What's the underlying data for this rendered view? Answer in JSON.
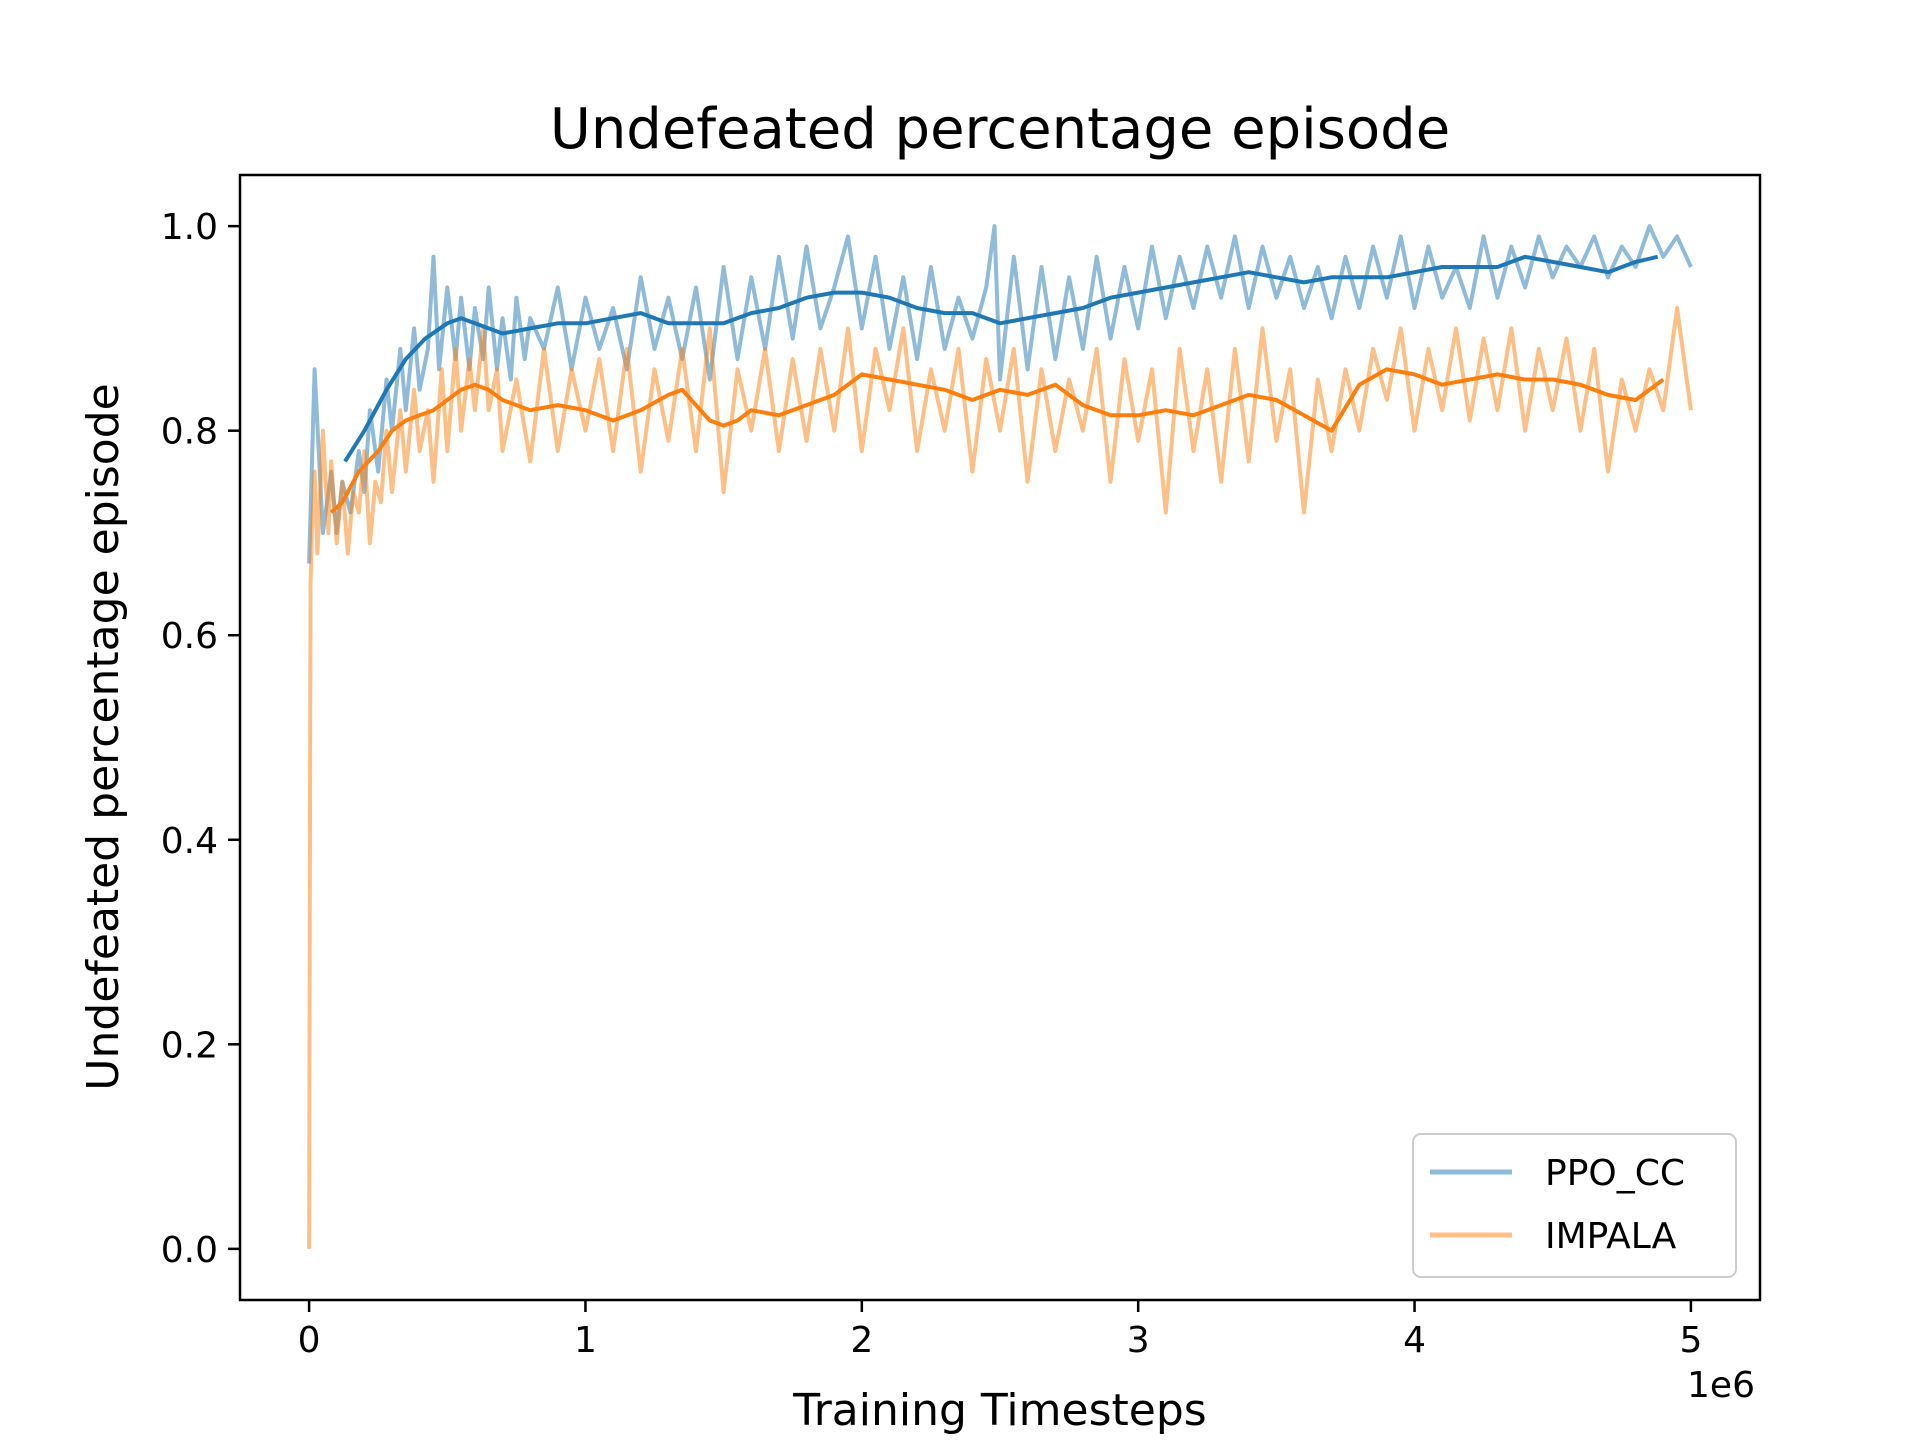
{
  "chart_data": {
    "type": "line",
    "title": "Undefeated percentage episode",
    "xlabel": "Training Timesteps",
    "ylabel": "Undefeated percentage episode",
    "x_offset_label": "1e6",
    "xlim": [
      -0.25,
      5.25
    ],
    "ylim": [
      -0.05,
      1.05
    ],
    "x_ticks": [
      0,
      1,
      2,
      3,
      4,
      5
    ],
    "x_tick_labels": [
      "0",
      "1",
      "2",
      "3",
      "4",
      "5"
    ],
    "y_ticks": [
      0.0,
      0.2,
      0.4,
      0.6,
      0.8,
      1.0
    ],
    "y_tick_labels": [
      "0.0",
      "0.2",
      "0.4",
      "0.6",
      "0.8",
      "1.0"
    ],
    "grid": false,
    "legend_position": "lower-right",
    "legend": [
      "PPO_CC",
      "IMPALA"
    ],
    "series": [
      {
        "name": "PPO_CC",
        "color": "#1f77b4",
        "raw_x": [
          0.0,
          0.02,
          0.05,
          0.08,
          0.1,
          0.12,
          0.15,
          0.18,
          0.2,
          0.22,
          0.25,
          0.28,
          0.3,
          0.33,
          0.35,
          0.38,
          0.4,
          0.43,
          0.45,
          0.47,
          0.5,
          0.53,
          0.55,
          0.58,
          0.6,
          0.63,
          0.65,
          0.68,
          0.7,
          0.73,
          0.75,
          0.78,
          0.8,
          0.85,
          0.9,
          0.95,
          1.0,
          1.05,
          1.1,
          1.15,
          1.2,
          1.25,
          1.3,
          1.35,
          1.4,
          1.45,
          1.5,
          1.55,
          1.6,
          1.65,
          1.7,
          1.75,
          1.8,
          1.85,
          1.9,
          1.95,
          2.0,
          2.05,
          2.1,
          2.15,
          2.2,
          2.25,
          2.3,
          2.35,
          2.4,
          2.45,
          2.48,
          2.5,
          2.55,
          2.6,
          2.65,
          2.7,
          2.75,
          2.8,
          2.85,
          2.9,
          2.95,
          3.0,
          3.05,
          3.1,
          3.15,
          3.2,
          3.25,
          3.3,
          3.35,
          3.4,
          3.45,
          3.5,
          3.55,
          3.6,
          3.65,
          3.7,
          3.75,
          3.8,
          3.85,
          3.9,
          3.95,
          4.0,
          4.05,
          4.1,
          4.15,
          4.2,
          4.25,
          4.3,
          4.35,
          4.4,
          4.45,
          4.5,
          4.55,
          4.6,
          4.65,
          4.7,
          4.75,
          4.8,
          4.85,
          4.9,
          4.95,
          5.0
        ],
        "raw_y": [
          0.67,
          0.86,
          0.7,
          0.76,
          0.7,
          0.75,
          0.72,
          0.78,
          0.74,
          0.82,
          0.76,
          0.85,
          0.8,
          0.88,
          0.82,
          0.9,
          0.84,
          0.88,
          0.97,
          0.86,
          0.94,
          0.87,
          0.93,
          0.86,
          0.92,
          0.87,
          0.94,
          0.86,
          0.91,
          0.85,
          0.93,
          0.87,
          0.91,
          0.88,
          0.94,
          0.86,
          0.93,
          0.88,
          0.92,
          0.86,
          0.95,
          0.88,
          0.93,
          0.87,
          0.94,
          0.85,
          0.96,
          0.87,
          0.95,
          0.88,
          0.97,
          0.89,
          0.98,
          0.9,
          0.94,
          0.99,
          0.9,
          0.97,
          0.88,
          0.95,
          0.87,
          0.96,
          0.88,
          0.93,
          0.89,
          0.94,
          1.0,
          0.85,
          0.97,
          0.86,
          0.96,
          0.87,
          0.95,
          0.88,
          0.97,
          0.89,
          0.96,
          0.9,
          0.98,
          0.91,
          0.97,
          0.92,
          0.98,
          0.93,
          0.99,
          0.92,
          0.98,
          0.93,
          0.97,
          0.92,
          0.96,
          0.91,
          0.97,
          0.92,
          0.98,
          0.93,
          0.99,
          0.92,
          0.98,
          0.93,
          0.96,
          0.92,
          0.99,
          0.93,
          0.98,
          0.94,
          0.99,
          0.95,
          0.98,
          0.96,
          0.99,
          0.95,
          0.98,
          0.96,
          1.0,
          0.97,
          0.99,
          0.96
        ],
        "smooth_x": [
          0.13,
          0.2,
          0.28,
          0.35,
          0.42,
          0.5,
          0.55,
          0.6,
          0.7,
          0.8,
          0.9,
          1.0,
          1.1,
          1.2,
          1.3,
          1.4,
          1.5,
          1.6,
          1.7,
          1.8,
          1.9,
          2.0,
          2.1,
          2.2,
          2.3,
          2.4,
          2.5,
          2.6,
          2.7,
          2.8,
          2.9,
          3.0,
          3.1,
          3.2,
          3.3,
          3.4,
          3.5,
          3.6,
          3.7,
          3.8,
          3.9,
          4.0,
          4.1,
          4.2,
          4.3,
          4.4,
          4.5,
          4.6,
          4.7,
          4.8,
          4.88
        ],
        "smooth_y": [
          0.77,
          0.8,
          0.84,
          0.87,
          0.89,
          0.905,
          0.91,
          0.905,
          0.895,
          0.9,
          0.905,
          0.905,
          0.91,
          0.915,
          0.905,
          0.905,
          0.905,
          0.915,
          0.92,
          0.93,
          0.935,
          0.935,
          0.93,
          0.92,
          0.915,
          0.915,
          0.905,
          0.91,
          0.915,
          0.92,
          0.93,
          0.935,
          0.94,
          0.945,
          0.95,
          0.955,
          0.95,
          0.945,
          0.95,
          0.95,
          0.95,
          0.955,
          0.96,
          0.96,
          0.96,
          0.97,
          0.965,
          0.96,
          0.955,
          0.965,
          0.97
        ]
      },
      {
        "name": "IMPALA",
        "color": "#ff7f0e",
        "raw_x": [
          0.0,
          0.005,
          0.01,
          0.02,
          0.03,
          0.05,
          0.07,
          0.08,
          0.1,
          0.12,
          0.14,
          0.16,
          0.18,
          0.2,
          0.22,
          0.24,
          0.26,
          0.28,
          0.3,
          0.33,
          0.35,
          0.38,
          0.4,
          0.43,
          0.45,
          0.48,
          0.5,
          0.53,
          0.55,
          0.58,
          0.6,
          0.63,
          0.65,
          0.68,
          0.7,
          0.75,
          0.8,
          0.85,
          0.9,
          0.95,
          1.0,
          1.05,
          1.1,
          1.15,
          1.2,
          1.25,
          1.3,
          1.35,
          1.4,
          1.45,
          1.5,
          1.55,
          1.6,
          1.65,
          1.7,
          1.75,
          1.8,
          1.85,
          1.9,
          1.95,
          2.0,
          2.05,
          2.1,
          2.15,
          2.2,
          2.25,
          2.3,
          2.35,
          2.4,
          2.45,
          2.5,
          2.55,
          2.6,
          2.65,
          2.7,
          2.75,
          2.8,
          2.85,
          2.9,
          2.95,
          3.0,
          3.05,
          3.1,
          3.15,
          3.2,
          3.25,
          3.3,
          3.35,
          3.4,
          3.45,
          3.5,
          3.55,
          3.6,
          3.65,
          3.7,
          3.75,
          3.8,
          3.85,
          3.9,
          3.95,
          4.0,
          4.05,
          4.1,
          4.15,
          4.2,
          4.25,
          4.3,
          4.35,
          4.4,
          4.45,
          4.5,
          4.55,
          4.6,
          4.65,
          4.7,
          4.75,
          4.8,
          4.85,
          4.9,
          4.95,
          5.0
        ],
        "raw_y": [
          0.0,
          0.65,
          0.7,
          0.76,
          0.68,
          0.8,
          0.7,
          0.77,
          0.69,
          0.75,
          0.68,
          0.74,
          0.72,
          0.78,
          0.69,
          0.75,
          0.73,
          0.8,
          0.74,
          0.82,
          0.76,
          0.84,
          0.78,
          0.82,
          0.75,
          0.86,
          0.78,
          0.88,
          0.8,
          0.87,
          0.82,
          0.9,
          0.82,
          0.86,
          0.78,
          0.85,
          0.77,
          0.88,
          0.78,
          0.86,
          0.8,
          0.87,
          0.78,
          0.88,
          0.76,
          0.86,
          0.79,
          0.88,
          0.78,
          0.9,
          0.74,
          0.86,
          0.8,
          0.88,
          0.78,
          0.87,
          0.79,
          0.88,
          0.8,
          0.9,
          0.78,
          0.88,
          0.82,
          0.9,
          0.78,
          0.86,
          0.8,
          0.88,
          0.76,
          0.87,
          0.8,
          0.88,
          0.75,
          0.86,
          0.78,
          0.85,
          0.8,
          0.88,
          0.75,
          0.87,
          0.79,
          0.86,
          0.72,
          0.88,
          0.78,
          0.86,
          0.75,
          0.88,
          0.77,
          0.9,
          0.79,
          0.86,
          0.72,
          0.85,
          0.78,
          0.86,
          0.8,
          0.88,
          0.83,
          0.9,
          0.8,
          0.88,
          0.82,
          0.9,
          0.81,
          0.89,
          0.82,
          0.9,
          0.8,
          0.88,
          0.82,
          0.89,
          0.8,
          0.88,
          0.76,
          0.85,
          0.8,
          0.86,
          0.82,
          0.92,
          0.82
        ],
        "smooth_x": [
          0.08,
          0.12,
          0.18,
          0.25,
          0.3,
          0.35,
          0.4,
          0.45,
          0.5,
          0.55,
          0.6,
          0.65,
          0.7,
          0.8,
          0.9,
          1.0,
          1.1,
          1.2,
          1.3,
          1.35,
          1.4,
          1.45,
          1.5,
          1.55,
          1.6,
          1.7,
          1.8,
          1.9,
          2.0,
          2.1,
          2.2,
          2.3,
          2.4,
          2.5,
          2.6,
          2.7,
          2.8,
          2.9,
          3.0,
          3.1,
          3.2,
          3.3,
          3.4,
          3.5,
          3.6,
          3.7,
          3.8,
          3.9,
          4.0,
          4.1,
          4.2,
          4.3,
          4.4,
          4.5,
          4.6,
          4.7,
          4.8,
          4.9
        ],
        "smooth_y": [
          0.72,
          0.73,
          0.76,
          0.78,
          0.8,
          0.81,
          0.815,
          0.82,
          0.83,
          0.84,
          0.845,
          0.84,
          0.83,
          0.82,
          0.825,
          0.82,
          0.81,
          0.82,
          0.835,
          0.84,
          0.825,
          0.81,
          0.805,
          0.81,
          0.82,
          0.815,
          0.825,
          0.835,
          0.855,
          0.85,
          0.845,
          0.84,
          0.83,
          0.84,
          0.835,
          0.845,
          0.825,
          0.815,
          0.815,
          0.82,
          0.815,
          0.825,
          0.835,
          0.83,
          0.815,
          0.8,
          0.845,
          0.86,
          0.855,
          0.845,
          0.85,
          0.855,
          0.85,
          0.85,
          0.845,
          0.835,
          0.83,
          0.85
        ]
      }
    ]
  }
}
